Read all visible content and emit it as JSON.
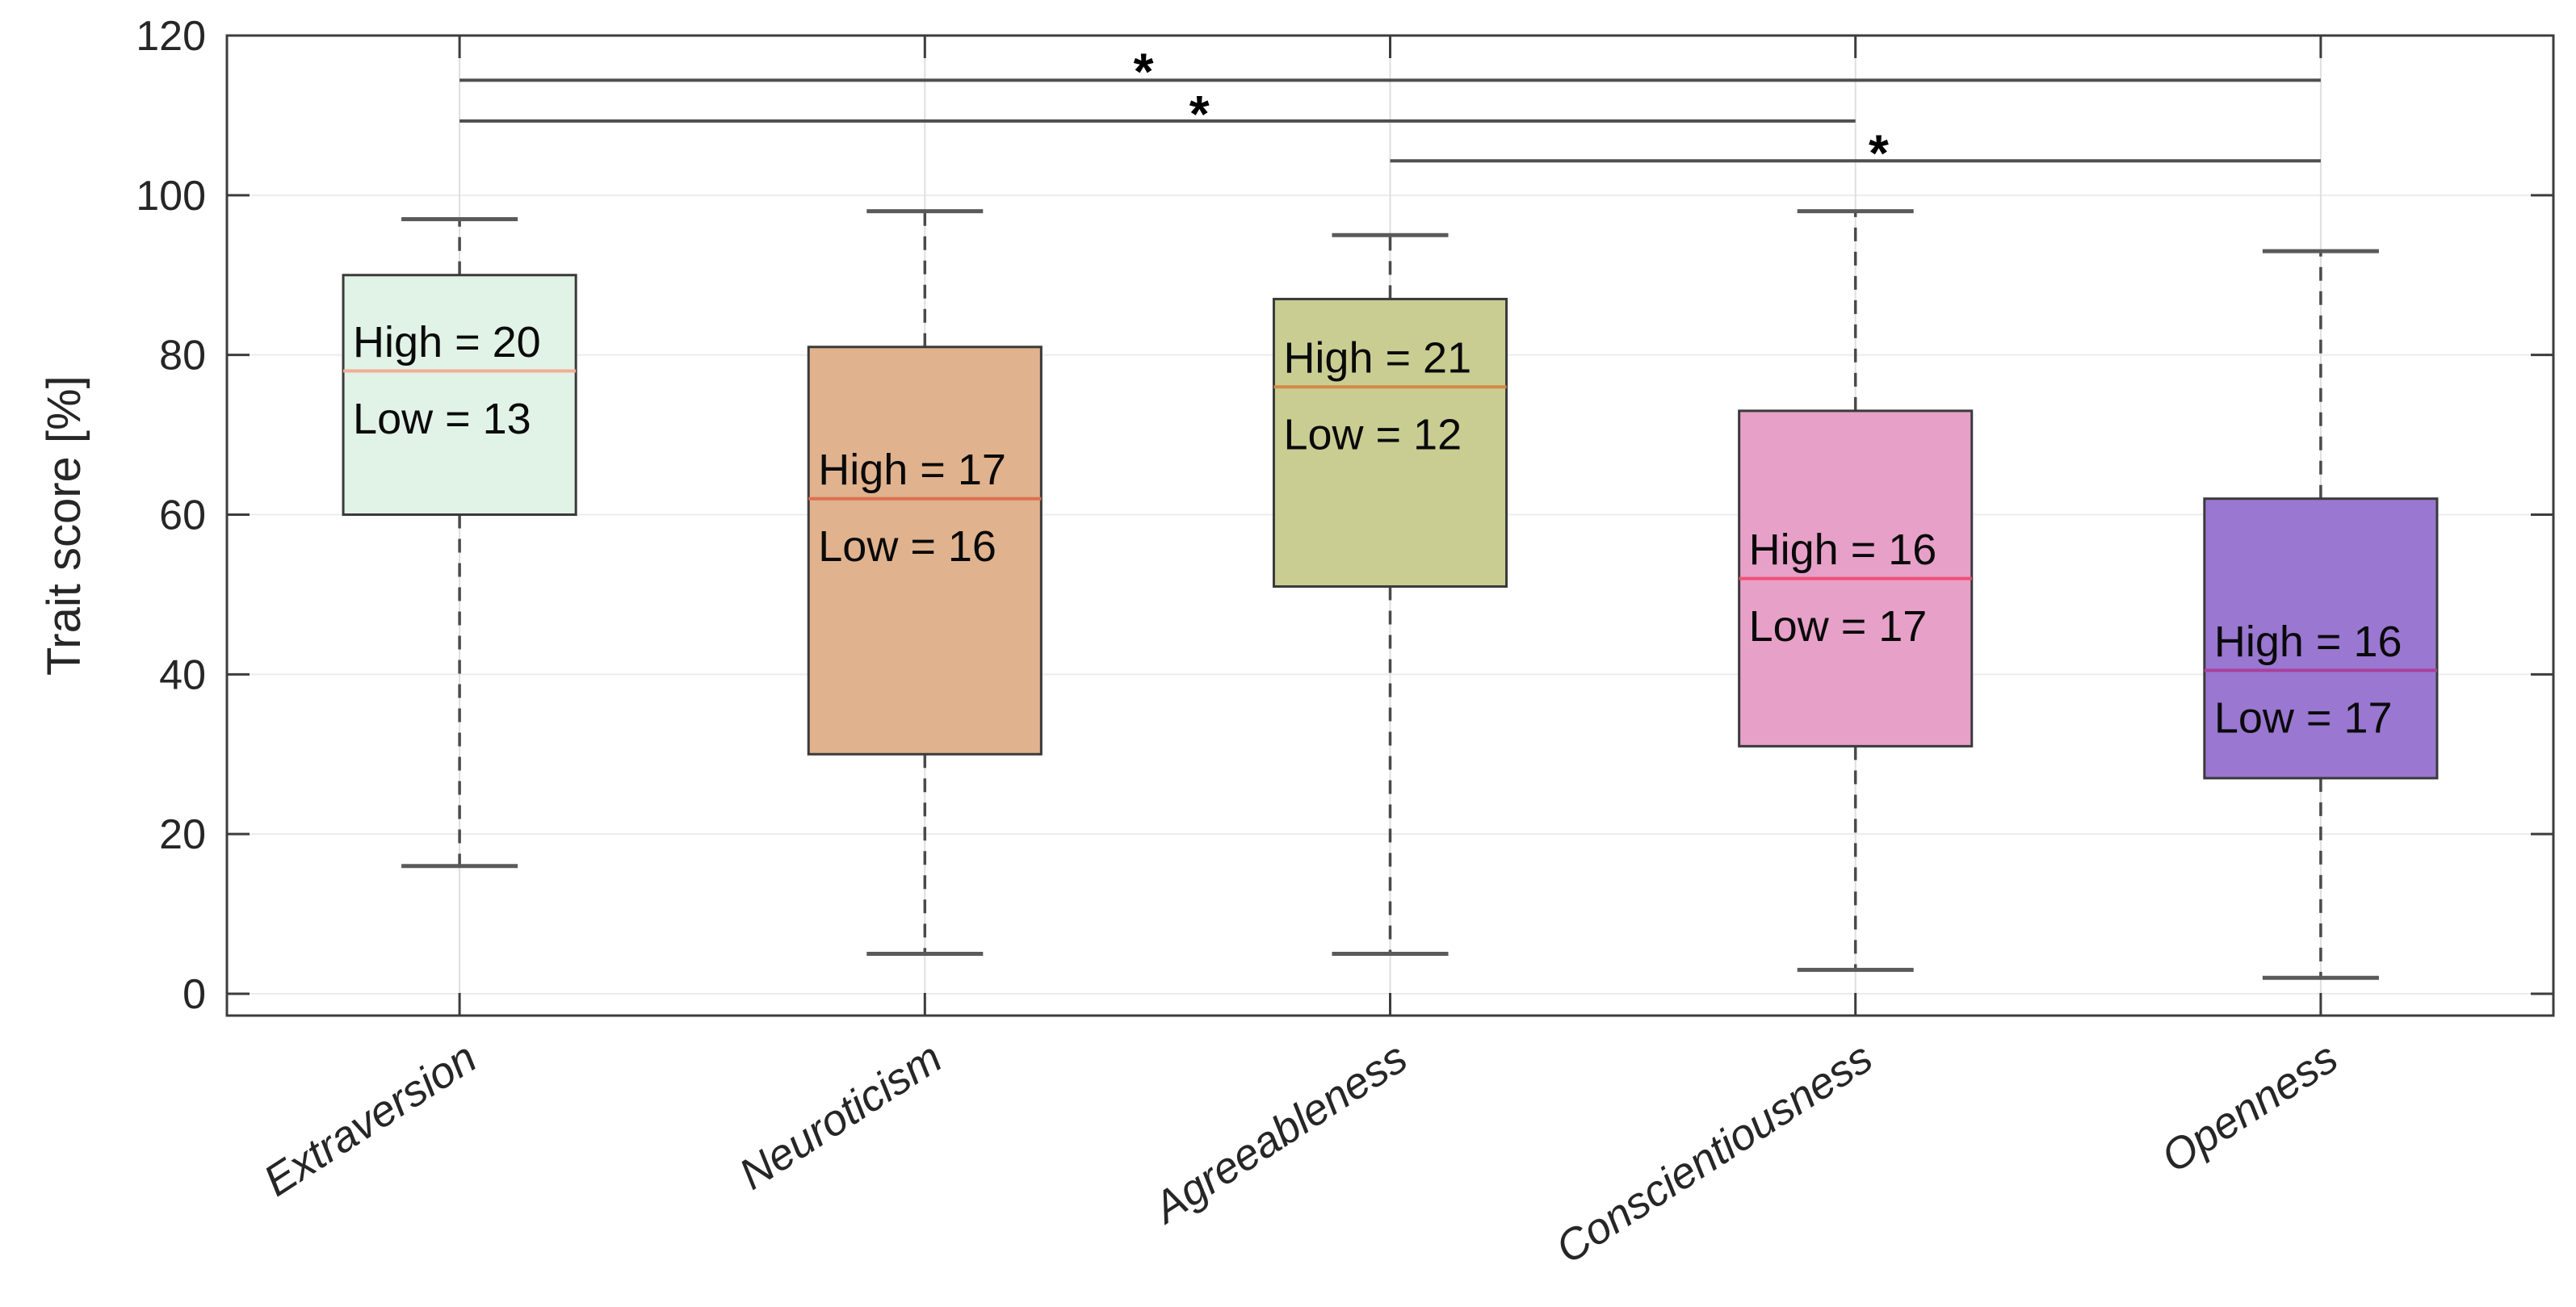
{
  "chart_data": {
    "type": "box",
    "title": "",
    "ylabel": "Trait score [%]",
    "xlabel": "",
    "ylim": [
      -2.73,
      120
    ],
    "xlim": [
      0.5,
      5.5
    ],
    "yticks": [
      0,
      20,
      40,
      60,
      80,
      100,
      120
    ],
    "grid": true,
    "legend_position": "none",
    "categories": [
      "Extraversion",
      "Neuroticism",
      "Agreeableness",
      "Conscientiousness",
      "Openness"
    ],
    "boxes": [
      {
        "name": "Extraversion",
        "x": 1,
        "whisker_low": 16,
        "q1": 60,
        "median": 78,
        "q3": 90,
        "whisker_high": 97,
        "fill": "#E1F3E7",
        "median_color": "#F2AE96",
        "annotation_high": "High = 20",
        "annotation_low": "Low = 13"
      },
      {
        "name": "Neuroticism",
        "x": 2,
        "whisker_low": 5,
        "q1": 30,
        "median": 62,
        "q3": 81,
        "whisker_high": 98,
        "fill": "#E0B28D",
        "median_color": "#DF6F4E",
        "annotation_high": "High = 17",
        "annotation_low": "Low = 16"
      },
      {
        "name": "Agreeableness",
        "x": 3,
        "whisker_low": 5,
        "q1": 51,
        "median": 76,
        "q3": 87,
        "whisker_high": 95,
        "fill": "#C9CD92",
        "median_color": "#D28A45",
        "annotation_high": "High = 21",
        "annotation_low": "Low = 12"
      },
      {
        "name": "Conscientiousness",
        "x": 4,
        "whisker_low": 3,
        "q1": 31,
        "median": 52,
        "q3": 73,
        "whisker_high": 98,
        "fill": "#E7A0C8",
        "median_color": "#EF5077",
        "annotation_high": "High = 16",
        "annotation_low": "Low = 17"
      },
      {
        "name": "Openness",
        "x": 5,
        "whisker_low": 2,
        "q1": 27,
        "median": 40.5,
        "q3": 62,
        "whisker_high": 93,
        "fill": "#9A77D1",
        "median_color": "#A8419B",
        "annotation_high": "High = 16",
        "annotation_low": "Low = 17"
      }
    ],
    "significance_bars": [
      {
        "from": 1,
        "to": 5,
        "y": 114.4,
        "star": "*",
        "star_x": 2.47,
        "star_y": 117.1
      },
      {
        "from": 1,
        "to": 4,
        "y": 109.3,
        "star": "*",
        "star_x": 2.59,
        "star_y": 111.8
      },
      {
        "from": 3,
        "to": 5,
        "y": 104.3,
        "star": "*",
        "star_x": 4.05,
        "star_y": 106.9
      }
    ],
    "style": {
      "axis_color": "#3C3C3C",
      "grid_color_h": "#ECECEC",
      "grid_color_v": "#DFDFDF",
      "whisker_color": "#4A4A4A",
      "cap_color": "#5A5A5A",
      "box_edge_color": "#3A3A3A",
      "sig_bar_color": "#4F4F4F",
      "text_color": "#262626",
      "annotation_color": "#0A0A0A",
      "background": "#FFFFFF"
    }
  }
}
